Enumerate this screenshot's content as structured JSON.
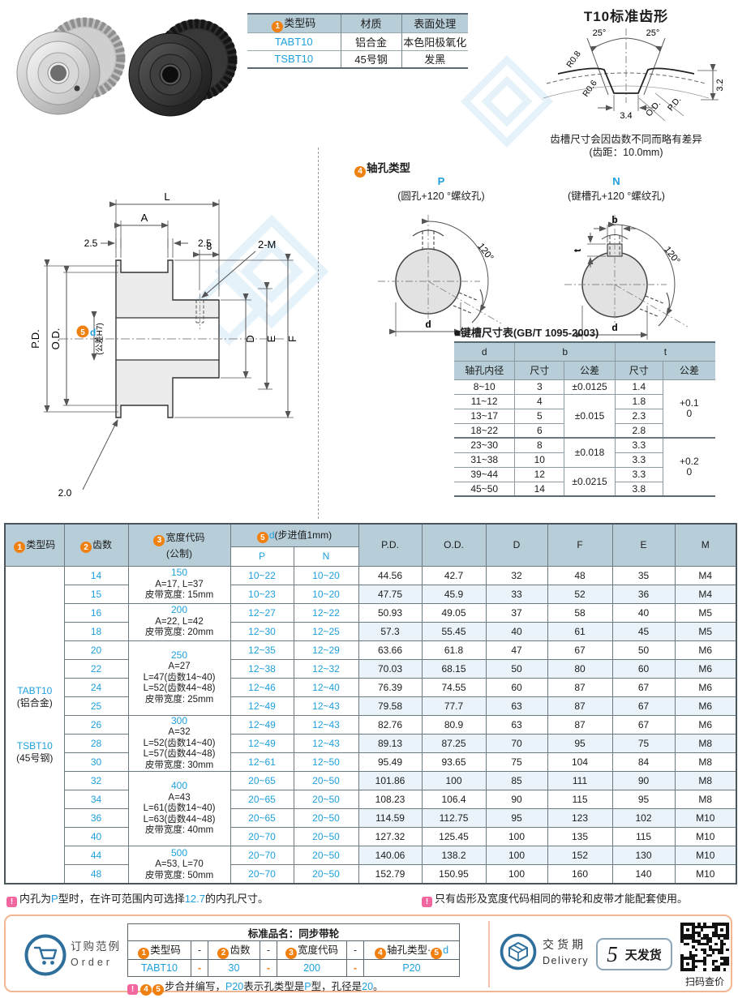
{
  "colors": {
    "accent_orange": "#f08111",
    "accent_blue": "#1f9fdc",
    "header_bg": "#b7ced9",
    "row_alt_bg": "#e9f3f9",
    "note_pink": "#f2679f",
    "box_border": "#f2b693",
    "icon_blue": "#2e6f9c",
    "watermark_blue": "#cfe6f4"
  },
  "spec_table": {
    "header_type": [
      {
        "badge": "1"
      },
      {
        "text": "类型码"
      }
    ],
    "header_material": "材质",
    "header_finish": "表面处理",
    "rows": [
      {
        "code": "TABT10",
        "material": "铝合金",
        "finish": "本色阳极氧化"
      },
      {
        "code": "TSBT10",
        "material": "45号钢",
        "finish": "发黑"
      }
    ]
  },
  "tooth_profile": {
    "title": "T10标准齿形",
    "angle_left": "25°",
    "angle_right": "25°",
    "r_tip": "R0.8",
    "r_root": "R0.6",
    "root_width": "3.4",
    "od_label": "O.D.",
    "pd_label": "P.D.",
    "depth": "3.2",
    "note_line1": "齿槽尺寸会因齿数不同而略有差异",
    "note_line2": "(齿距：10.0mm)"
  },
  "drawing": {
    "dim_l": "L",
    "dim_a": "A",
    "dim_left": "2.5",
    "dim_right": "2.5",
    "dim_tap_offset": "8",
    "dim_tap": "2-M",
    "dim_pd": "P.D.",
    "dim_od": "O.D.",
    "bore_badge": "5",
    "bore_label": "d",
    "bore_tol": "(公差H7)",
    "dim_d": "D",
    "dim_e": "E",
    "dim_f": "F",
    "dim_flange": "2.0"
  },
  "shaft_holes": {
    "title_segments": [
      {
        "badge": "4"
      },
      {
        "text": "轴孔类型"
      }
    ],
    "p": {
      "code": "P",
      "desc": "(圆孔+120 °螺纹孔)",
      "angle": "120°",
      "dim_d": "d"
    },
    "n": {
      "code": "N",
      "desc": "(键槽孔+120 °螺纹孔)",
      "angle": "120°",
      "dim_d": "d",
      "dim_b": "b",
      "dim_t": "t"
    }
  },
  "keyway_table": {
    "title": "■键槽尺寸表(GB/T 1095-2003)",
    "col_d": "d",
    "col_d_sub": "轴孔内径",
    "col_b": "b",
    "col_t": "t",
    "col_size_b": "尺寸",
    "col_tol_b": "公差",
    "col_size_t": "尺寸",
    "col_tol_t": "公差",
    "rows": [
      {
        "d": "8~10",
        "b": "3",
        "t": "1.4"
      },
      {
        "d": "11~12",
        "b": "4",
        "t": "1.8"
      },
      {
        "d": "13~17",
        "b": "5",
        "t": "2.3"
      },
      {
        "d": "18~22",
        "b": "6",
        "t": "2.8"
      },
      {
        "d": "23~30",
        "b": "8",
        "t": "3.3"
      },
      {
        "d": "31~38",
        "b": "10",
        "t": "3.3"
      },
      {
        "d": "39~44",
        "b": "12",
        "t": "3.3"
      },
      {
        "d": "45~50",
        "b": "14",
        "t": "3.8"
      }
    ],
    "b_tols": [
      {
        "text": "±0.0125"
      },
      {
        "text": "±0.015"
      },
      {
        "text": "±0.018"
      },
      {
        "text": "±0.0215"
      }
    ],
    "t_tols": [
      {
        "line1": "+0.1",
        "line2": "0"
      },
      {
        "line1": "+0.2",
        "line2": "0"
      }
    ]
  },
  "main_table": {
    "h_type_segments": [
      {
        "badge": "1"
      },
      {
        "text": "类型码"
      }
    ],
    "h_teeth_segments": [
      {
        "badge": "2"
      },
      {
        "text": "齿数"
      }
    ],
    "h_width_segments": [
      {
        "badge": "3"
      },
      {
        "text": "宽度代码"
      }
    ],
    "h_width_sub": "(公制)",
    "h_d_segments": [
      {
        "badge": "5"
      },
      {
        "text": "d",
        "blue": true
      },
      {
        "text": "(步进值1mm)"
      }
    ],
    "h_sub_p": "P",
    "h_sub_n": "N",
    "h_pd": "P.D.",
    "h_od": "O.D.",
    "h_dd": "D",
    "h_f": "F",
    "h_e": "E",
    "h_m": "M",
    "type_cell": {
      "code1": "TABT10",
      "mat1": "(铝合金)",
      "code2": "TSBT10",
      "mat2": "(45号钢)"
    },
    "width_groups": [
      {
        "start": 0,
        "span": 2,
        "code": "150",
        "lines": [
          "A=17, L=37",
          "皮带宽度: 15mm"
        ]
      },
      {
        "start": 2,
        "span": 2,
        "code": "200",
        "lines": [
          "A=22, L=42",
          "皮带宽度: 20mm"
        ]
      },
      {
        "start": 4,
        "span": 4,
        "code": "250",
        "lines": [
          "A=27",
          "L=47(齿数14~40)",
          "L=52(齿数44~48)",
          "皮带宽度: 25mm"
        ]
      },
      {
        "start": 8,
        "span": 3,
        "code": "300",
        "lines": [
          "A=32",
          "L=52(齿数14~40)",
          "L=57(齿数44~48)",
          "皮带宽度: 30mm"
        ]
      },
      {
        "start": 11,
        "span": 4,
        "code": "400",
        "lines": [
          "A=43",
          "L=61(齿数14~40)",
          "L=63(齿数44~48)",
          "皮带宽度: 40mm"
        ]
      },
      {
        "start": 15,
        "span": 2,
        "code": "500",
        "lines": [
          "A=53, L=70",
          "皮带宽度: 50mm"
        ]
      }
    ],
    "rows": [
      {
        "teeth": "14",
        "p": "10~22",
        "n": "10~20",
        "pd": "44.56",
        "od": "42.7",
        "d": "32",
        "f": "48",
        "e": "35",
        "m": "M4"
      },
      {
        "teeth": "15",
        "p": "10~23",
        "n": "10~20",
        "pd": "47.75",
        "od": "45.9",
        "d": "33",
        "f": "52",
        "e": "36",
        "m": "M4"
      },
      {
        "teeth": "16",
        "p": "12~27",
        "n": "12~22",
        "pd": "50.93",
        "od": "49.05",
        "d": "37",
        "f": "58",
        "e": "40",
        "m": "M5"
      },
      {
        "teeth": "18",
        "p": "12~30",
        "n": "12~25",
        "pd": "57.3",
        "od": "55.45",
        "d": "40",
        "f": "61",
        "e": "45",
        "m": "M5"
      },
      {
        "teeth": "20",
        "p": "12~35",
        "n": "12~29",
        "pd": "63.66",
        "od": "61.8",
        "d": "47",
        "f": "67",
        "e": "50",
        "m": "M6"
      },
      {
        "teeth": "22",
        "p": "12~38",
        "n": "12~32",
        "pd": "70.03",
        "od": "68.15",
        "d": "50",
        "f": "80",
        "e": "60",
        "m": "M6"
      },
      {
        "teeth": "24",
        "p": "12~46",
        "n": "12~40",
        "pd": "76.39",
        "od": "74.55",
        "d": "60",
        "f": "87",
        "e": "67",
        "m": "M6"
      },
      {
        "teeth": "25",
        "p": "12~49",
        "n": "12~43",
        "pd": "79.58",
        "od": "77.7",
        "d": "63",
        "f": "87",
        "e": "67",
        "m": "M6"
      },
      {
        "teeth": "26",
        "p": "12~49",
        "n": "12~43",
        "pd": "82.76",
        "od": "80.9",
        "d": "63",
        "f": "87",
        "e": "67",
        "m": "M6"
      },
      {
        "teeth": "28",
        "p": "12~49",
        "n": "12~43",
        "pd": "89.13",
        "od": "87.25",
        "d": "70",
        "f": "95",
        "e": "75",
        "m": "M8"
      },
      {
        "teeth": "30",
        "p": "12~61",
        "n": "12~50",
        "pd": "95.49",
        "od": "93.65",
        "d": "75",
        "f": "104",
        "e": "84",
        "m": "M8"
      },
      {
        "teeth": "32",
        "p": "20~65",
        "n": "20~50",
        "pd": "101.86",
        "od": "100",
        "d": "85",
        "f": "111",
        "e": "90",
        "m": "M8"
      },
      {
        "teeth": "34",
        "p": "20~65",
        "n": "20~50",
        "pd": "108.23",
        "od": "106.4",
        "d": "90",
        "f": "115",
        "e": "95",
        "m": "M8"
      },
      {
        "teeth": "36",
        "p": "20~65",
        "n": "20~50",
        "pd": "114.59",
        "od": "112.75",
        "d": "95",
        "f": "123",
        "e": "102",
        "m": "M10"
      },
      {
        "teeth": "40",
        "p": "20~70",
        "n": "20~50",
        "pd": "127.32",
        "od": "125.45",
        "d": "100",
        "f": "135",
        "e": "115",
        "m": "M10"
      },
      {
        "teeth": "44",
        "p": "20~70",
        "n": "20~50",
        "pd": "140.06",
        "od": "138.2",
        "d": "100",
        "f": "152",
        "e": "130",
        "m": "M10"
      },
      {
        "teeth": "48",
        "p": "20~70",
        "n": "20~50",
        "pd": "152.79",
        "od": "150.95",
        "d": "100",
        "f": "160",
        "e": "140",
        "m": "M10"
      }
    ]
  },
  "footnotes": {
    "note1": [
      {
        "icon": "!"
      },
      {
        "text": "内孔为"
      },
      {
        "text": "P",
        "blue": true
      },
      {
        "text": "型时，在许可范围内可选择"
      },
      {
        "text": "12.7",
        "blue": true
      },
      {
        "text": "的内孔尺寸。"
      }
    ],
    "note2": [
      {
        "icon": "!"
      },
      {
        "text": "只有齿形及宽度代码相同的带轮和皮带才能配套使用。"
      }
    ]
  },
  "order": {
    "label_cn": "订购范例",
    "label_en": "Order",
    "product_name": "标准品名：同步带轮",
    "header_segments": [
      [
        {
          "badge": "1"
        },
        {
          "text": "类型码"
        }
      ],
      [
        {
          "badge": "2"
        },
        {
          "text": "齿数"
        }
      ],
      [
        {
          "badge": "3"
        },
        {
          "text": "宽度代码"
        }
      ],
      [
        {
          "badge": "4"
        },
        {
          "text": "轴孔类型·"
        },
        {
          "badge": "5"
        },
        {
          "text": "d",
          "blue": true
        }
      ]
    ],
    "dash": "-",
    "values": [
      "TABT10",
      "30",
      "200",
      "P20"
    ],
    "note_segments": [
      {
        "icon": "!"
      },
      {
        "badge": "4"
      },
      {
        "badge": "5"
      },
      {
        "text": "步合并编写，"
      },
      {
        "text": "P20",
        "blue": true
      },
      {
        "text": "表示孔类型是"
      },
      {
        "text": "P",
        "blue": true
      },
      {
        "text": "型，孔径是"
      },
      {
        "text": "20",
        "blue": true
      },
      {
        "text": "。"
      }
    ]
  },
  "delivery": {
    "label_cn": "交货期",
    "label_en": "Delivery",
    "days": "5",
    "ship_text": "天发货",
    "qr_caption": "扫码查价"
  }
}
